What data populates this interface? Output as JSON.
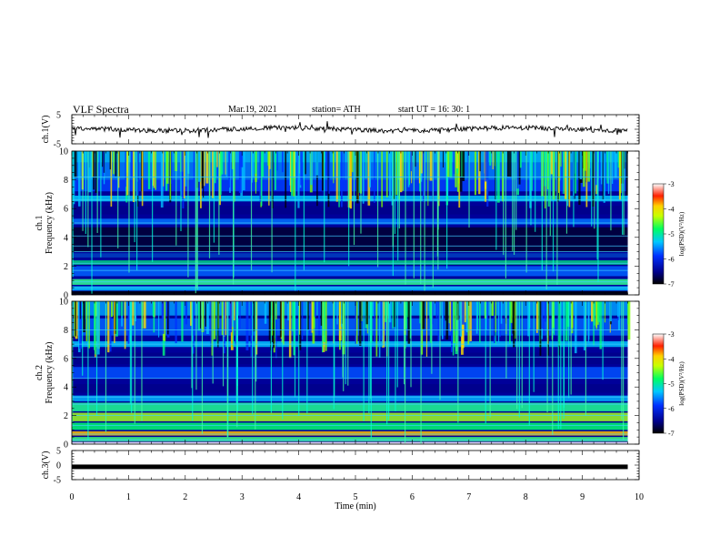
{
  "header": {
    "title": "VLF  Spectra",
    "date": "Mar.19, 2021",
    "station": "station= ATH",
    "start": "start  UT  =    16: 30: 1"
  },
  "chart_data": [
    {
      "type": "line",
      "name": "ch1-waveform",
      "ylabel": "ch.1(V)",
      "ylim": [
        -5,
        5
      ],
      "yticks": [
        5,
        -5
      ],
      "xlim": [
        0,
        10
      ],
      "x_extent_min": [
        0,
        9.8
      ],
      "description_level_v": 0
    },
    {
      "type": "heatmap",
      "name": "ch1-spectrogram",
      "ylabel": "ch.1\nFrequency (kHz)",
      "ylabel_lines": [
        "ch.1",
        "Frequency (kHz)"
      ],
      "ylim_khz": [
        0,
        10
      ],
      "yticks": [
        10,
        8,
        6,
        4,
        2,
        0
      ],
      "xlim_min": [
        0,
        10
      ],
      "data_extent_min": [
        0,
        9.8
      ],
      "colorbar": {
        "label": "log(PSD)(V²/Hz)",
        "range": [
          -7,
          -3
        ],
        "ticks": [
          -3,
          -4,
          -5,
          -6,
          -7
        ]
      }
    },
    {
      "type": "heatmap",
      "name": "ch2-spectrogram",
      "ylabel": "ch.2\nFrequency (kHz)",
      "ylabel_lines": [
        "ch.2",
        "Frequency (kHz)"
      ],
      "ylim_khz": [
        0,
        10
      ],
      "yticks": [
        10,
        8,
        6,
        4,
        2,
        0
      ],
      "xlim_min": [
        0,
        10
      ],
      "data_extent_min": [
        0,
        9.8
      ],
      "colorbar": {
        "label": "log(PSD)(V²/Hz)",
        "range": [
          -7,
          -3
        ],
        "ticks": [
          -3,
          -4,
          -5,
          -6,
          -7
        ]
      }
    },
    {
      "type": "line",
      "name": "ch3-waveform",
      "ylabel": "ch.3(V)",
      "ylim": [
        -5,
        5
      ],
      "yticks": [
        5,
        0,
        -5
      ],
      "xlim": [
        0,
        10
      ],
      "x_extent_min": [
        0,
        9.8
      ],
      "description_level_v": -0.6
    }
  ],
  "x_axis": {
    "label": "Time  (min)",
    "range": [
      0,
      10
    ],
    "ticks": [
      "0",
      "1",
      "2",
      "3",
      "4",
      "5",
      "6",
      "7",
      "8",
      "9",
      "10"
    ]
  },
  "colors": {
    "background": "#ffffff",
    "axis": "#000000",
    "spectrogram_base": "#00008b"
  }
}
